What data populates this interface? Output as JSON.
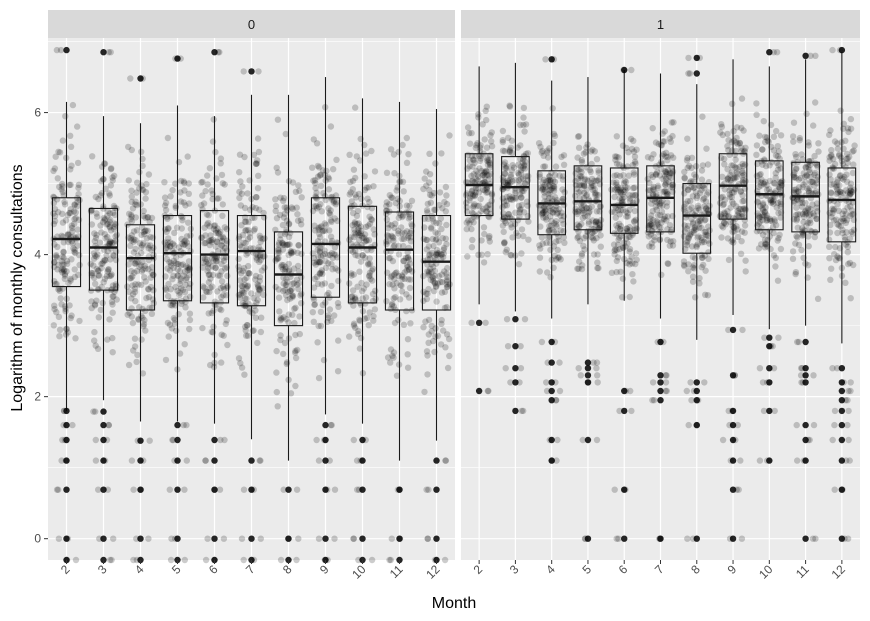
{
  "chart_data": {
    "type": "boxplot",
    "facet_labels": [
      "0",
      "1"
    ],
    "xlabel": "Month",
    "ylabel": "Logarithm of monthly consultations",
    "categories": [
      "2",
      "3",
      "4",
      "5",
      "6",
      "7",
      "8",
      "9",
      "10",
      "11",
      "12"
    ],
    "y_ticks": [
      0,
      2,
      4,
      6
    ],
    "ylim": [
      -0.3,
      7.05
    ],
    "colors": {
      "panel_bg": "#ebebeb",
      "grid": "#ffffff",
      "strip_bg": "#d9d9d9",
      "points": "#000000",
      "box_line": "#1a1a1a"
    },
    "panels": [
      {
        "facet": "0",
        "boxes": [
          {
            "month": "2",
            "q1": 3.55,
            "median": 4.22,
            "q3": 4.8,
            "whisker_low": 1.8,
            "whisker_high": 6.15
          },
          {
            "month": "3",
            "q1": 3.5,
            "median": 4.1,
            "q3": 4.65,
            "whisker_low": 1.95,
            "whisker_high": 5.95
          },
          {
            "month": "4",
            "q1": 3.22,
            "median": 3.95,
            "q3": 4.42,
            "whisker_low": 1.65,
            "whisker_high": 5.85
          },
          {
            "month": "5",
            "q1": 3.35,
            "median": 4.02,
            "q3": 4.55,
            "whisker_low": 1.65,
            "whisker_high": 6.1
          },
          {
            "month": "6",
            "q1": 3.32,
            "median": 4.0,
            "q3": 4.62,
            "whisker_low": 1.62,
            "whisker_high": 5.95
          },
          {
            "month": "7",
            "q1": 3.28,
            "median": 4.05,
            "q3": 4.55,
            "whisker_low": 1.4,
            "whisker_high": 6.25
          },
          {
            "month": "8",
            "q1": 3.0,
            "median": 3.72,
            "q3": 4.32,
            "whisker_low": 1.1,
            "whisker_high": 6.25
          },
          {
            "month": "9",
            "q1": 3.4,
            "median": 4.15,
            "q3": 4.8,
            "whisker_low": 1.75,
            "whisker_high": 6.5
          },
          {
            "month": "10",
            "q1": 3.32,
            "median": 4.1,
            "q3": 4.68,
            "whisker_low": 1.62,
            "whisker_high": 6.2
          },
          {
            "month": "11",
            "q1": 3.22,
            "median": 4.07,
            "q3": 4.6,
            "whisker_low": 1.1,
            "whisker_high": 6.15
          },
          {
            "month": "12",
            "q1": 3.22,
            "median": 3.9,
            "q3": 4.55,
            "whisker_low": 1.38,
            "whisker_high": 6.05
          }
        ]
      },
      {
        "facet": "1",
        "boxes": [
          {
            "month": "2",
            "q1": 4.55,
            "median": 4.98,
            "q3": 5.42,
            "whisker_low": 3.3,
            "whisker_high": 6.65
          },
          {
            "month": "3",
            "q1": 4.5,
            "median": 4.95,
            "q3": 5.38,
            "whisker_low": 3.2,
            "whisker_high": 6.7
          },
          {
            "month": "4",
            "q1": 4.28,
            "median": 4.72,
            "q3": 5.18,
            "whisker_low": 3.1,
            "whisker_high": 6.45
          },
          {
            "month": "5",
            "q1": 4.35,
            "median": 4.75,
            "q3": 5.25,
            "whisker_low": 3.3,
            "whisker_high": 6.5
          },
          {
            "month": "6",
            "q1": 4.3,
            "median": 4.7,
            "q3": 5.22,
            "whisker_low": 3.35,
            "whisker_high": 6.6
          },
          {
            "month": "7",
            "q1": 4.32,
            "median": 4.8,
            "q3": 5.25,
            "whisker_low": 3.1,
            "whisker_high": 6.55
          },
          {
            "month": "8",
            "q1": 4.02,
            "median": 4.55,
            "q3": 5.0,
            "whisker_low": 2.8,
            "whisker_high": 6.4
          },
          {
            "month": "9",
            "q1": 4.5,
            "median": 4.97,
            "q3": 5.42,
            "whisker_low": 3.15,
            "whisker_high": 6.75
          },
          {
            "month": "10",
            "q1": 4.35,
            "median": 4.85,
            "q3": 5.32,
            "whisker_low": 2.95,
            "whisker_high": 6.65
          },
          {
            "month": "11",
            "q1": 4.32,
            "median": 4.82,
            "q3": 5.3,
            "whisker_low": 3.0,
            "whisker_high": 6.75
          },
          {
            "month": "12",
            "q1": 4.18,
            "median": 4.77,
            "q3": 5.22,
            "whisker_low": 2.75,
            "whisker_high": 6.85
          }
        ]
      }
    ],
    "outliers": [
      [
        [
          6.88,
          1.8,
          1.6,
          1.39,
          1.1,
          0.69,
          0,
          -0.3
        ],
        [
          6.85,
          1.79,
          1.6,
          1.39,
          1.1,
          0.69,
          0,
          -0.3
        ],
        [
          6.48,
          1.38,
          1.1,
          0.69,
          0,
          -0.3
        ],
        [
          6.76,
          1.6,
          1.39,
          1.1,
          0.69,
          0,
          -0.3
        ],
        [
          6.85,
          1.39,
          1.1,
          0.69,
          0,
          -0.3
        ],
        [
          6.58,
          1.1,
          0.69,
          0,
          -0.3
        ],
        [
          0.69,
          0,
          -0.3
        ],
        [
          1.6,
          1.39,
          1.1,
          0.69,
          0,
          -0.3
        ],
        [
          1.39,
          1.1,
          0.69,
          0,
          -0.3
        ],
        [
          0.69,
          0,
          -0.3
        ],
        [
          1.1,
          0.69,
          0,
          -0.3
        ]
      ],
      [
        [
          3.04,
          2.08
        ],
        [
          3.09,
          2.71,
          2.4,
          2.2,
          1.8
        ],
        [
          6.75,
          2.77,
          2.48,
          2.2,
          2.08,
          1.95,
          1.39,
          1.1
        ],
        [
          2.48,
          2.4,
          2.3,
          2.2,
          1.39,
          0
        ],
        [
          6.6,
          2.08,
          1.8,
          0.69,
          0
        ],
        [
          2.77,
          2.3,
          2.2,
          2.08,
          1.95,
          0
        ],
        [
          6.77,
          6.55,
          2.2,
          2.08,
          1.95,
          1.6,
          0
        ],
        [
          2.94,
          2.3,
          1.8,
          1.6,
          1.39,
          1.1,
          0.69,
          0
        ],
        [
          6.85,
          2.83,
          2.71,
          2.4,
          2.2,
          1.8,
          1.1
        ],
        [
          6.8,
          2.77,
          2.4,
          2.3,
          2.2,
          1.6,
          1.39,
          1.1,
          0
        ],
        [
          6.88,
          2.4,
          2.2,
          2.08,
          1.95,
          1.8,
          1.6,
          1.39,
          1.1,
          0.69,
          0
        ]
      ]
    ]
  }
}
